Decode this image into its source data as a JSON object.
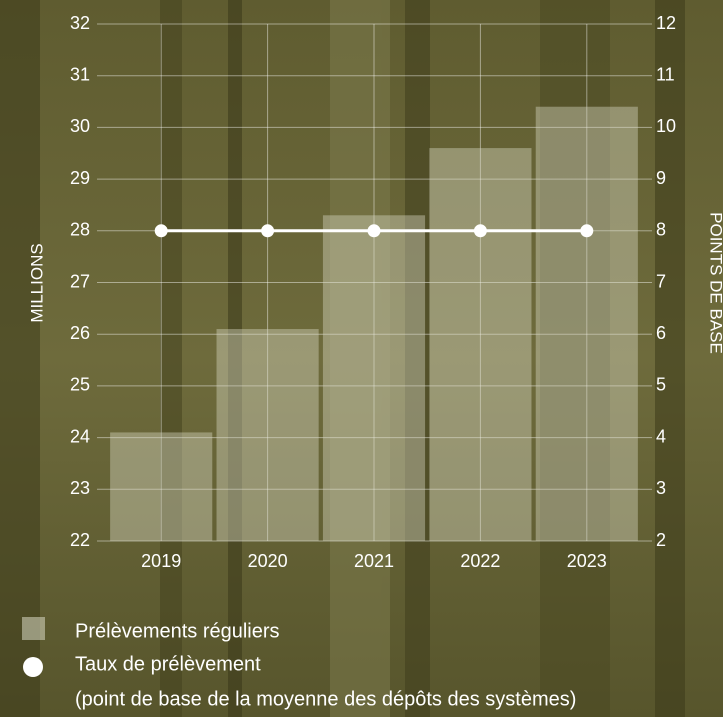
{
  "chart_data": {
    "type": "combo",
    "categories": [
      "2019",
      "2020",
      "2021",
      "2022",
      "2023"
    ],
    "series": [
      {
        "name": "Prélèvements réguliers",
        "type": "bar",
        "color": "#d8d8c4",
        "values": [
          24.1,
          26.1,
          28.3,
          29.6,
          30.4
        ]
      },
      {
        "name": "Taux de prélèvement",
        "type": "line",
        "axis": "y2",
        "color": "#ffffff",
        "values": [
          8,
          8,
          8,
          8,
          8
        ]
      }
    ],
    "legend_note": "(point de base de la moyenne des dépôts des systèmes)",
    "y_label": "MILLIONS",
    "y2_label": "POINTS DE BASE",
    "ylim": [
      22,
      32
    ],
    "yticks": [
      22,
      23,
      24,
      25,
      26,
      27,
      28,
      29,
      30,
      31,
      32
    ],
    "y2lim": [
      2,
      12
    ],
    "y2ticks": [
      2,
      3,
      4,
      5,
      6,
      7,
      8,
      9,
      10,
      11,
      12
    ],
    "grid": true
  }
}
